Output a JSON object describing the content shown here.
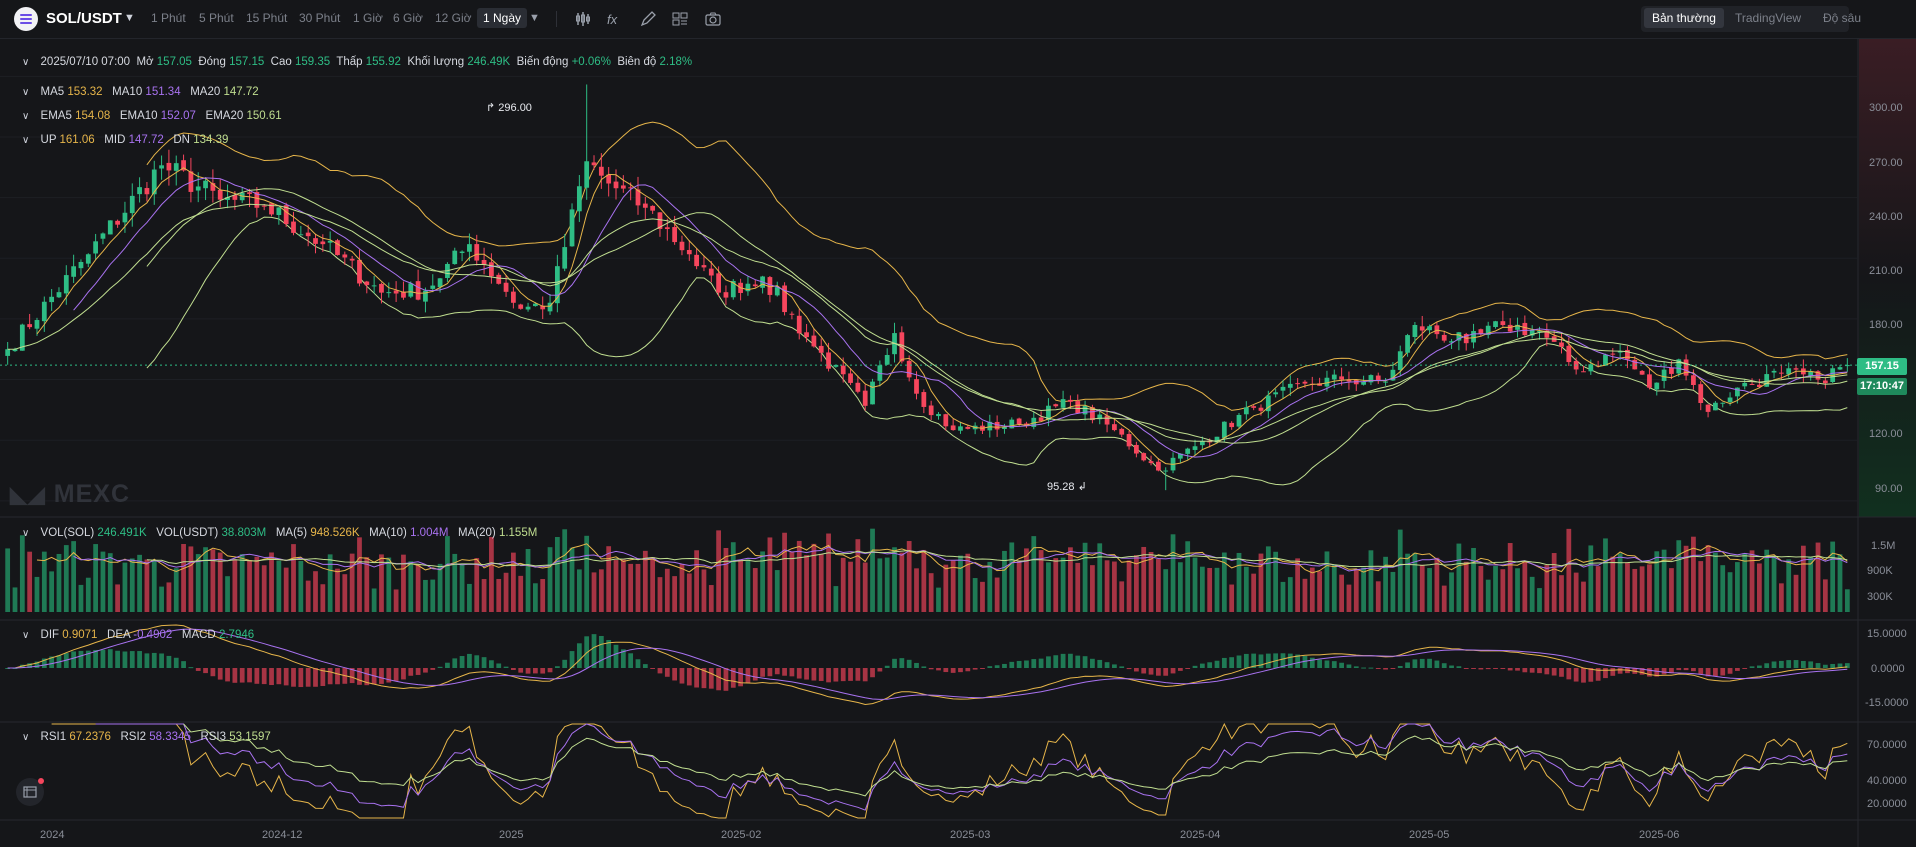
{
  "header": {
    "symbol": "SOL/USDT",
    "timeframes": [
      "1 Phút",
      "5 Phút",
      "15 Phút",
      "30 Phút",
      "1 Giờ",
      "6 Giờ",
      "12 Giờ",
      "1 Ngày"
    ],
    "active_timeframe": "1 Ngày",
    "views": [
      "Bản thường",
      "TradingView",
      "Độ sâu"
    ],
    "active_view": "Bản thường"
  },
  "ohlc": {
    "date": "2025/07/10 07:00",
    "open_label": "Mở",
    "open": "157.05",
    "close_label": "Đóng",
    "close": "157.15",
    "high_label": "Cao",
    "high": "159.35",
    "low_label": "Thấp",
    "low": "155.92",
    "volume_label": "Khối lượng",
    "volume": "246.49K",
    "change_label": "Biến động",
    "change": "+0.06%",
    "amplitude_label": "Biên độ",
    "amplitude": "2.18%"
  },
  "ma": {
    "ma5_label": "MA5",
    "ma5": "153.32",
    "ma10_label": "MA10",
    "ma10": "151.34",
    "ma20_label": "MA20",
    "ma20": "147.72"
  },
  "ema": {
    "ema5_label": "EMA5",
    "ema5": "154.08",
    "ema10_label": "EMA10",
    "ema10": "152.07",
    "ema20_label": "EMA20",
    "ema20": "150.61"
  },
  "boll": {
    "up_label": "UP",
    "up": "161.06",
    "mid_label": "MID",
    "mid": "147.72",
    "dn_label": "DN",
    "dn": "134.39"
  },
  "volume": {
    "vol_sol_label": "VOL(SOL)",
    "vol_sol": "246.491K",
    "vol_usdt_label": "VOL(USDT)",
    "vol_usdt": "38.803M",
    "ma5_label": "MA(5)",
    "ma5": "948.526K",
    "ma10_label": "MA(10)",
    "ma10": "1.004M",
    "ma20_label": "MA(20)",
    "ma20": "1.155M"
  },
  "macd": {
    "dif_label": "DIF",
    "dif": "0.9071",
    "dea_label": "DEA",
    "dea": "-0.4902",
    "macd_label": "MACD",
    "macd": "2.7946"
  },
  "rsi": {
    "rsi1_label": "RSI1",
    "rsi1": "67.2376",
    "rsi2_label": "RSI2",
    "rsi2": "58.3345",
    "rsi3_label": "RSI3",
    "rsi3": "53.1597"
  },
  "price_axis": [
    "300.00",
    "270.00",
    "240.00",
    "210.00",
    "180.00",
    "120.00",
    "90.00"
  ],
  "volume_axis": [
    "1.5M",
    "900K",
    "300K"
  ],
  "macd_axis": [
    "15.0000",
    "0.0000",
    "-15.0000"
  ],
  "rsi_axis": [
    "70.0000",
    "40.0000",
    "20.0000"
  ],
  "x_axis": [
    "2024",
    "2024-12",
    "2025",
    "2025-02",
    "2025-03",
    "2025-04",
    "2025-05",
    "2025-06"
  ],
  "last_price": "157.15",
  "countdown": "17:10:47",
  "annotations": {
    "high": "296.00",
    "low": "95.28"
  },
  "watermark": "MEXC",
  "colors": {
    "up": "#2ebd85",
    "down": "#f6465d",
    "accent_yellow": "#e6b54a",
    "accent_purple": "#a872f0",
    "accent_green": "#c0de90"
  },
  "chart_data": {
    "type": "candlestick",
    "title": "SOL/USDT",
    "interval": "1 Ngày",
    "ylim": [
      82,
      318
    ],
    "anchors": [
      {
        "date": "2024-11-01",
        "close": 165
      },
      {
        "date": "2024-11-12",
        "close": 212
      },
      {
        "date": "2024-11-22",
        "close": 256
      },
      {
        "date": "2024-11-30",
        "close": 239
      },
      {
        "date": "2024-12-06",
        "close": 236
      },
      {
        "date": "2024-12-14",
        "close": 217
      },
      {
        "date": "2024-12-22",
        "close": 193
      },
      {
        "date": "2024-12-28",
        "close": 194
      },
      {
        "date": "2025-01-03",
        "close": 217
      },
      {
        "date": "2025-01-10",
        "close": 185
      },
      {
        "date": "2025-01-14",
        "close": 188
      },
      {
        "date": "2025-01-19",
        "close": 258
      },
      {
        "date": "2025-01-22",
        "close": 247
      },
      {
        "date": "2025-01-27",
        "close": 235
      },
      {
        "date": "2025-02-02",
        "close": 212
      },
      {
        "date": "2025-02-06",
        "close": 193
      },
      {
        "date": "2025-02-12",
        "close": 201
      },
      {
        "date": "2025-02-18",
        "close": 171
      },
      {
        "date": "2025-02-26",
        "close": 137
      },
      {
        "date": "2025-03-02",
        "close": 173
      },
      {
        "date": "2025-03-05",
        "close": 143
      },
      {
        "date": "2025-03-10",
        "close": 125
      },
      {
        "date": "2025-03-19",
        "close": 128
      },
      {
        "date": "2025-03-26",
        "close": 139
      },
      {
        "date": "2025-04-01",
        "close": 125
      },
      {
        "date": "2025-04-07",
        "close": 105
      },
      {
        "date": "2025-04-12",
        "close": 117
      },
      {
        "date": "2025-04-20",
        "close": 136
      },
      {
        "date": "2025-04-27",
        "close": 148
      },
      {
        "date": "2025-05-02",
        "close": 150
      },
      {
        "date": "2025-05-08",
        "close": 149
      },
      {
        "date": "2025-05-12",
        "close": 177
      },
      {
        "date": "2025-05-19",
        "close": 168
      },
      {
        "date": "2025-05-24",
        "close": 177
      },
      {
        "date": "2025-05-29",
        "close": 174
      },
      {
        "date": "2025-06-03",
        "close": 155
      },
      {
        "date": "2025-06-09",
        "close": 164
      },
      {
        "date": "2025-06-13",
        "close": 146
      },
      {
        "date": "2025-06-17",
        "close": 160
      },
      {
        "date": "2025-06-21",
        "close": 134
      },
      {
        "date": "2025-06-25",
        "close": 146
      },
      {
        "date": "2025-07-01",
        "close": 153
      },
      {
        "date": "2025-07-06",
        "close": 150
      },
      {
        "date": "2025-07-10",
        "close": 157.15
      }
    ],
    "extremes": {
      "high": 296.0,
      "low": 95.28
    },
    "series": [
      {
        "name": "MA5",
        "color": "#e6b54a"
      },
      {
        "name": "MA10",
        "color": "#a872f0"
      },
      {
        "name": "MA20",
        "color": "#c0de90"
      },
      {
        "name": "EMA5",
        "color": "#e6b54a"
      },
      {
        "name": "EMA10",
        "color": "#a872f0"
      },
      {
        "name": "EMA20",
        "color": "#c0de90"
      },
      {
        "name": "UP",
        "color": "#e6b54a"
      },
      {
        "name": "MID",
        "color": "#a872f0"
      },
      {
        "name": "DN",
        "color": "#c0de90"
      }
    ],
    "panels": {
      "volume_ylim": [
        0,
        1800000
      ],
      "macd_ylim": [
        -22,
        22
      ],
      "rsi_ylim": [
        10,
        80
      ]
    }
  }
}
